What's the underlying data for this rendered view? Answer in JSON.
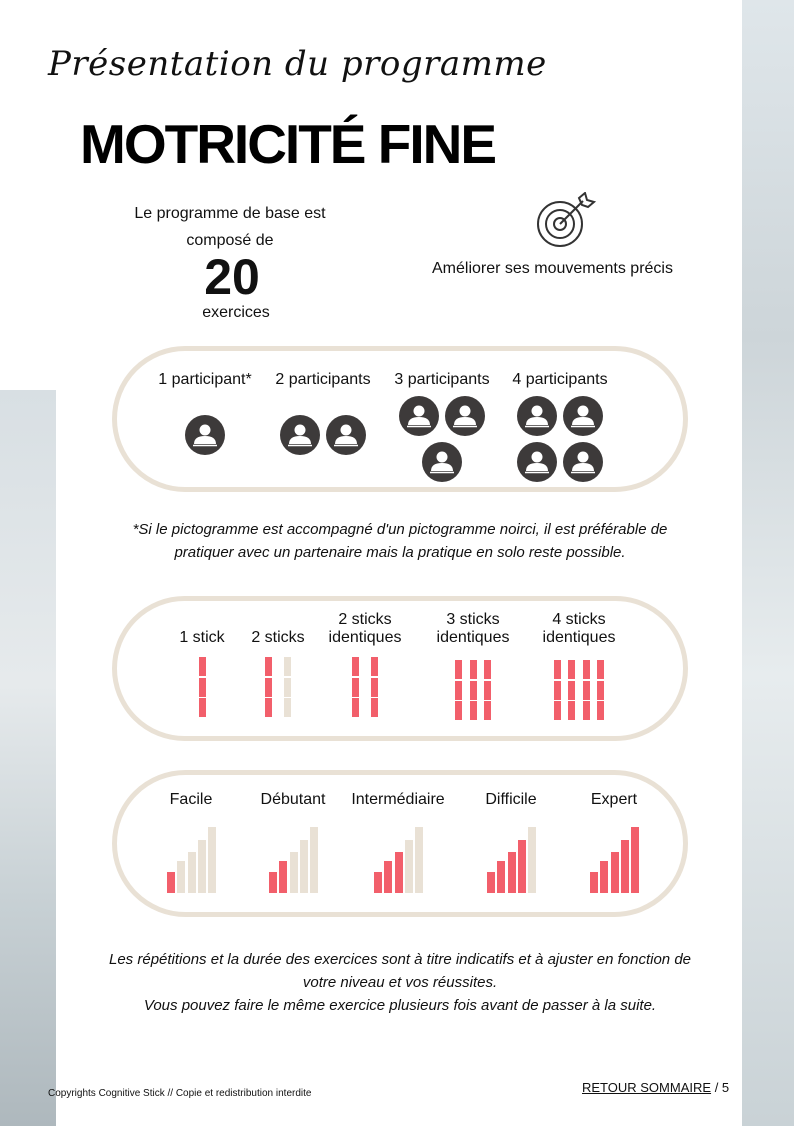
{
  "header": {
    "script_title": "Présentation du programme",
    "title": "MOTRICITÉ FINE"
  },
  "intro": {
    "line1": "Le programme de base est",
    "line2": "composé de",
    "count": "20",
    "unit": "exercices"
  },
  "goal": {
    "icon": "target-icon",
    "text": "Améliorer ses mouvements précis"
  },
  "participants": [
    {
      "label": "1 participant*",
      "count": 1
    },
    {
      "label": "2 participants",
      "count": 2
    },
    {
      "label": "3 participants",
      "count": 3
    },
    {
      "label": "4 participants",
      "count": 4
    }
  ],
  "participant_note": {
    "line1": "*Si le pictogramme est accompagné d'un pictogramme noirci, il est préférable de",
    "line2": "pratiquer avec un partenaire mais la pratique en solo reste possible."
  },
  "sticks": [
    {
      "line1": "1 stick",
      "line2": "",
      "columns": [
        "#f25f6b"
      ]
    },
    {
      "line1": "2 sticks",
      "line2": "",
      "columns": [
        "#f25f6b",
        "#e9e1d5"
      ]
    },
    {
      "line1": "2 sticks",
      "line2": "identiques",
      "columns": [
        "#f25f6b",
        "#f25f6b"
      ]
    },
    {
      "line1": "3 sticks",
      "line2": "identiques",
      "columns": [
        "#f25f6b",
        "#f25f6b",
        "#f25f6b"
      ]
    },
    {
      "line1": "4 sticks",
      "line2": "identiques",
      "columns": [
        "#f25f6b",
        "#f25f6b",
        "#f25f6b",
        "#f25f6b"
      ]
    }
  ],
  "levels": [
    {
      "label": "Facile",
      "filled": 1
    },
    {
      "label": "Débutant",
      "filled": 2
    },
    {
      "label": "Intermédiaire",
      "filled": 3
    },
    {
      "label": "Difficile",
      "filled": 4
    },
    {
      "label": "Expert",
      "filled": 5
    }
  ],
  "colors": {
    "accent": "#f25f6b",
    "neutral": "#e9e1d5",
    "icon": "#3d3a3a"
  },
  "footer_note": {
    "line1": "Les répétitions et la durée des exercices sont à titre indicatifs et à ajuster en fonction de",
    "line2": "votre niveau et vos réussites.",
    "line3": "Vous pouvez faire le même exercice plusieurs fois avant de passer à la suite."
  },
  "footer": {
    "copyright": "Copyrights Cognitive Stick // Copie et redistribution interdite",
    "link": "RETOUR SOMMAIRE",
    "page": "/ 5"
  }
}
